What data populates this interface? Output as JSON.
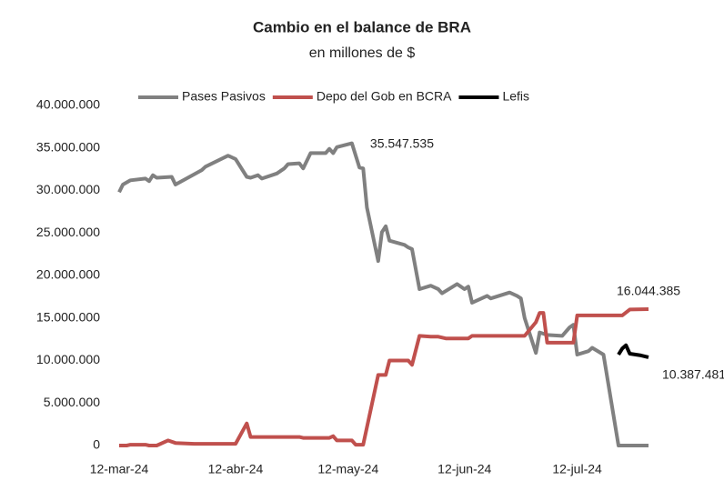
{
  "chart_data": {
    "type": "line",
    "title": "Cambio en el balance de BRA",
    "subtitle": "en millones de $",
    "legend": "top",
    "grid": false,
    "xlim": [
      "2024-03-12",
      "2024-07-31"
    ],
    "xticks": [
      {
        "value": "2024-03-12",
        "label": "12-mar-24"
      },
      {
        "value": "2024-04-12",
        "label": "12-abr-24"
      },
      {
        "value": "2024-05-12",
        "label": "12-may-24"
      },
      {
        "value": "2024-06-12",
        "label": "12-jun-24"
      },
      {
        "value": "2024-07-12",
        "label": "12-jul-24"
      }
    ],
    "ylim": [
      0,
      40000000
    ],
    "yticks": [
      0,
      {
        "value": 5000000,
        "label": "5.000.000"
      },
      {
        "value": 10000000,
        "label": "10.000.000"
      },
      {
        "value": 15000000,
        "label": "15.000.000"
      },
      {
        "value": 20000000,
        "label": "20.000.000"
      },
      {
        "value": 25000000,
        "label": "25.000.000"
      },
      {
        "value": 30000000,
        "label": "30.000.000"
      },
      {
        "value": 35000000,
        "label": "35.000.000"
      },
      {
        "value": 40000000,
        "label": "40.000.000"
      }
    ],
    "series": [
      {
        "name": "Pases Pasivos",
        "color": "#808080",
        "x": [
          "2024-03-12",
          "2024-03-13",
          "2024-03-15",
          "2024-03-19",
          "2024-03-20",
          "2024-03-21",
          "2024-03-22",
          "2024-03-26",
          "2024-03-27",
          "2024-04-03",
          "2024-04-04",
          "2024-04-10",
          "2024-04-12",
          "2024-04-15",
          "2024-04-16",
          "2024-04-18",
          "2024-04-19",
          "2024-04-23",
          "2024-04-25",
          "2024-04-26",
          "2024-04-29",
          "2024-04-30",
          "2024-05-02",
          "2024-05-06",
          "2024-05-07",
          "2024-05-08",
          "2024-05-09",
          "2024-05-13",
          "2024-05-15",
          "2024-05-16",
          "2024-05-17",
          "2024-05-20",
          "2024-05-21",
          "2024-05-22",
          "2024-05-23",
          "2024-05-27",
          "2024-05-28",
          "2024-05-29",
          "2024-05-31",
          "2024-06-03",
          "2024-06-05",
          "2024-06-06",
          "2024-06-10",
          "2024-06-12",
          "2024-06-13",
          "2024-06-14",
          "2024-06-18",
          "2024-06-19",
          "2024-06-24",
          "2024-06-26",
          "2024-06-27",
          "2024-06-28",
          "2024-07-01",
          "2024-07-02",
          "2024-07-04",
          "2024-07-08",
          "2024-07-10",
          "2024-07-11",
          "2024-07-12",
          "2024-07-15",
          "2024-07-16",
          "2024-07-19",
          "2024-07-23",
          "2024-07-31"
        ],
        "values": [
          29800000,
          30700000,
          31200000,
          31400000,
          31100000,
          31800000,
          31500000,
          31600000,
          30700000,
          32400000,
          32800000,
          34100000,
          33700000,
          31600000,
          31500000,
          31800000,
          31400000,
          32000000,
          32600000,
          33100000,
          33200000,
          32600000,
          34400000,
          34400000,
          34900000,
          34400000,
          35100000,
          35547535,
          32700000,
          32600000,
          28000000,
          21700000,
          25100000,
          25800000,
          24100000,
          23600000,
          23300000,
          23100000,
          18400000,
          18800000,
          18400000,
          17900000,
          19000000,
          18400000,
          18700000,
          16800000,
          17600000,
          17300000,
          18000000,
          17600000,
          17300000,
          15000000,
          10900000,
          13300000,
          13000000,
          12900000,
          13900000,
          14200000,
          10700000,
          11100000,
          11500000,
          10700000,
          0,
          0
        ],
        "value_labels": [
          null,
          null,
          null,
          null,
          null,
          null,
          null,
          null,
          null,
          null,
          null,
          null,
          null,
          null,
          null,
          null,
          null,
          null,
          null,
          null,
          null,
          null,
          null,
          null,
          null,
          null,
          null,
          "35.547.535",
          null,
          null,
          null,
          null,
          null,
          null,
          null,
          null,
          null,
          null,
          null,
          null,
          null,
          null,
          null,
          null,
          null,
          null,
          null,
          null,
          null,
          null,
          null,
          null,
          null,
          null,
          null,
          null,
          null,
          null,
          null,
          null,
          null,
          null,
          null,
          null
        ]
      },
      {
        "name": "Depo del Gob en BCRA",
        "color": "#c0504d",
        "x": [
          "2024-03-12",
          "2024-03-14",
          "2024-03-15",
          "2024-03-19",
          "2024-03-20",
          "2024-03-22",
          "2024-03-25",
          "2024-03-27",
          "2024-04-01",
          "2024-04-12",
          "2024-04-15",
          "2024-04-16",
          "2024-04-29",
          "2024-04-30",
          "2024-05-07",
          "2024-05-08",
          "2024-05-09",
          "2024-05-13",
          "2024-05-14",
          "2024-05-16",
          "2024-05-20",
          "2024-05-22",
          "2024-05-23",
          "2024-05-28",
          "2024-05-29",
          "2024-05-31",
          "2024-06-03",
          "2024-06-05",
          "2024-06-07",
          "2024-06-13",
          "2024-06-14",
          "2024-06-27",
          "2024-06-28",
          "2024-07-01",
          "2024-07-02",
          "2024-07-03",
          "2024-07-04",
          "2024-07-11",
          "2024-07-12",
          "2024-07-24",
          "2024-07-26",
          "2024-07-31"
        ],
        "values": [
          0,
          0,
          100000,
          100000,
          0,
          0,
          600000,
          300000,
          200000,
          200000,
          2600000,
          1000000,
          1000000,
          900000,
          900000,
          1100000,
          600000,
          600000,
          100000,
          100000,
          8300000,
          8300000,
          10000000,
          10000000,
          9500000,
          12900000,
          12800000,
          12800000,
          12600000,
          12600000,
          12900000,
          12900000,
          12900000,
          14500000,
          15600000,
          15600000,
          12100000,
          12100000,
          15300000,
          15300000,
          16000000,
          16044385
        ],
        "value_labels": [
          null,
          null,
          null,
          null,
          null,
          null,
          null,
          null,
          null,
          null,
          null,
          null,
          null,
          null,
          null,
          null,
          null,
          null,
          null,
          null,
          null,
          null,
          null,
          null,
          null,
          null,
          null,
          null,
          null,
          null,
          null,
          null,
          null,
          null,
          null,
          null,
          null,
          null,
          null,
          null,
          null,
          "16.044.385"
        ]
      },
      {
        "name": "Lefis",
        "color": "#000000",
        "x": [
          "2024-07-23",
          "2024-07-24",
          "2024-07-25",
          "2024-07-26",
          "2024-07-29",
          "2024-07-31"
        ],
        "values": [
          10700000,
          11400000,
          11800000,
          10800000,
          10600000,
          10387481
        ],
        "value_labels": [
          null,
          null,
          null,
          null,
          null,
          "10.387.481"
        ]
      }
    ]
  }
}
